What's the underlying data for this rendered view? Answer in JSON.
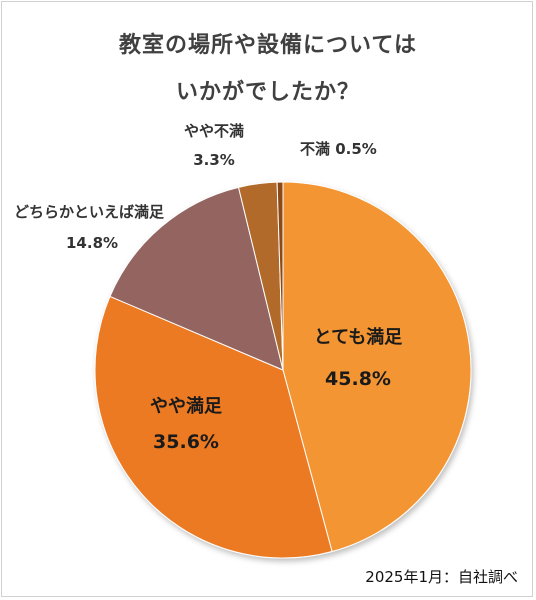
{
  "chart_data": {
    "type": "pie",
    "title_lines": [
      "教室の場所や設備については",
      "いかがでしたか？"
    ],
    "slices": [
      {
        "label": "とても満足",
        "pct_label": "45.8%",
        "value": 45.8,
        "color": "#F39530",
        "label_color": "#1a1a1a"
      },
      {
        "label": "やや満足",
        "pct_label": "35.6%",
        "value": 35.6,
        "color": "#EC7A22",
        "label_color": "#1a1a1a"
      },
      {
        "label": "どちらかといえば満足",
        "pct_label": "14.8%",
        "value": 14.8,
        "color": "#946560",
        "label_color": "#333333"
      },
      {
        "label": "やや不満",
        "pct_label": "3.3%",
        "value": 3.3,
        "color": "#B26A2A",
        "label_color": "#333333"
      },
      {
        "label": "不満",
        "pct_label": "0.5%",
        "value": 0.5,
        "color": "#8A4A16",
        "label_color": "#333333"
      }
    ],
    "start_angle_deg": 0,
    "direction": "clockwise",
    "legend": "none"
  },
  "source": "2025年1月：自社調べ"
}
